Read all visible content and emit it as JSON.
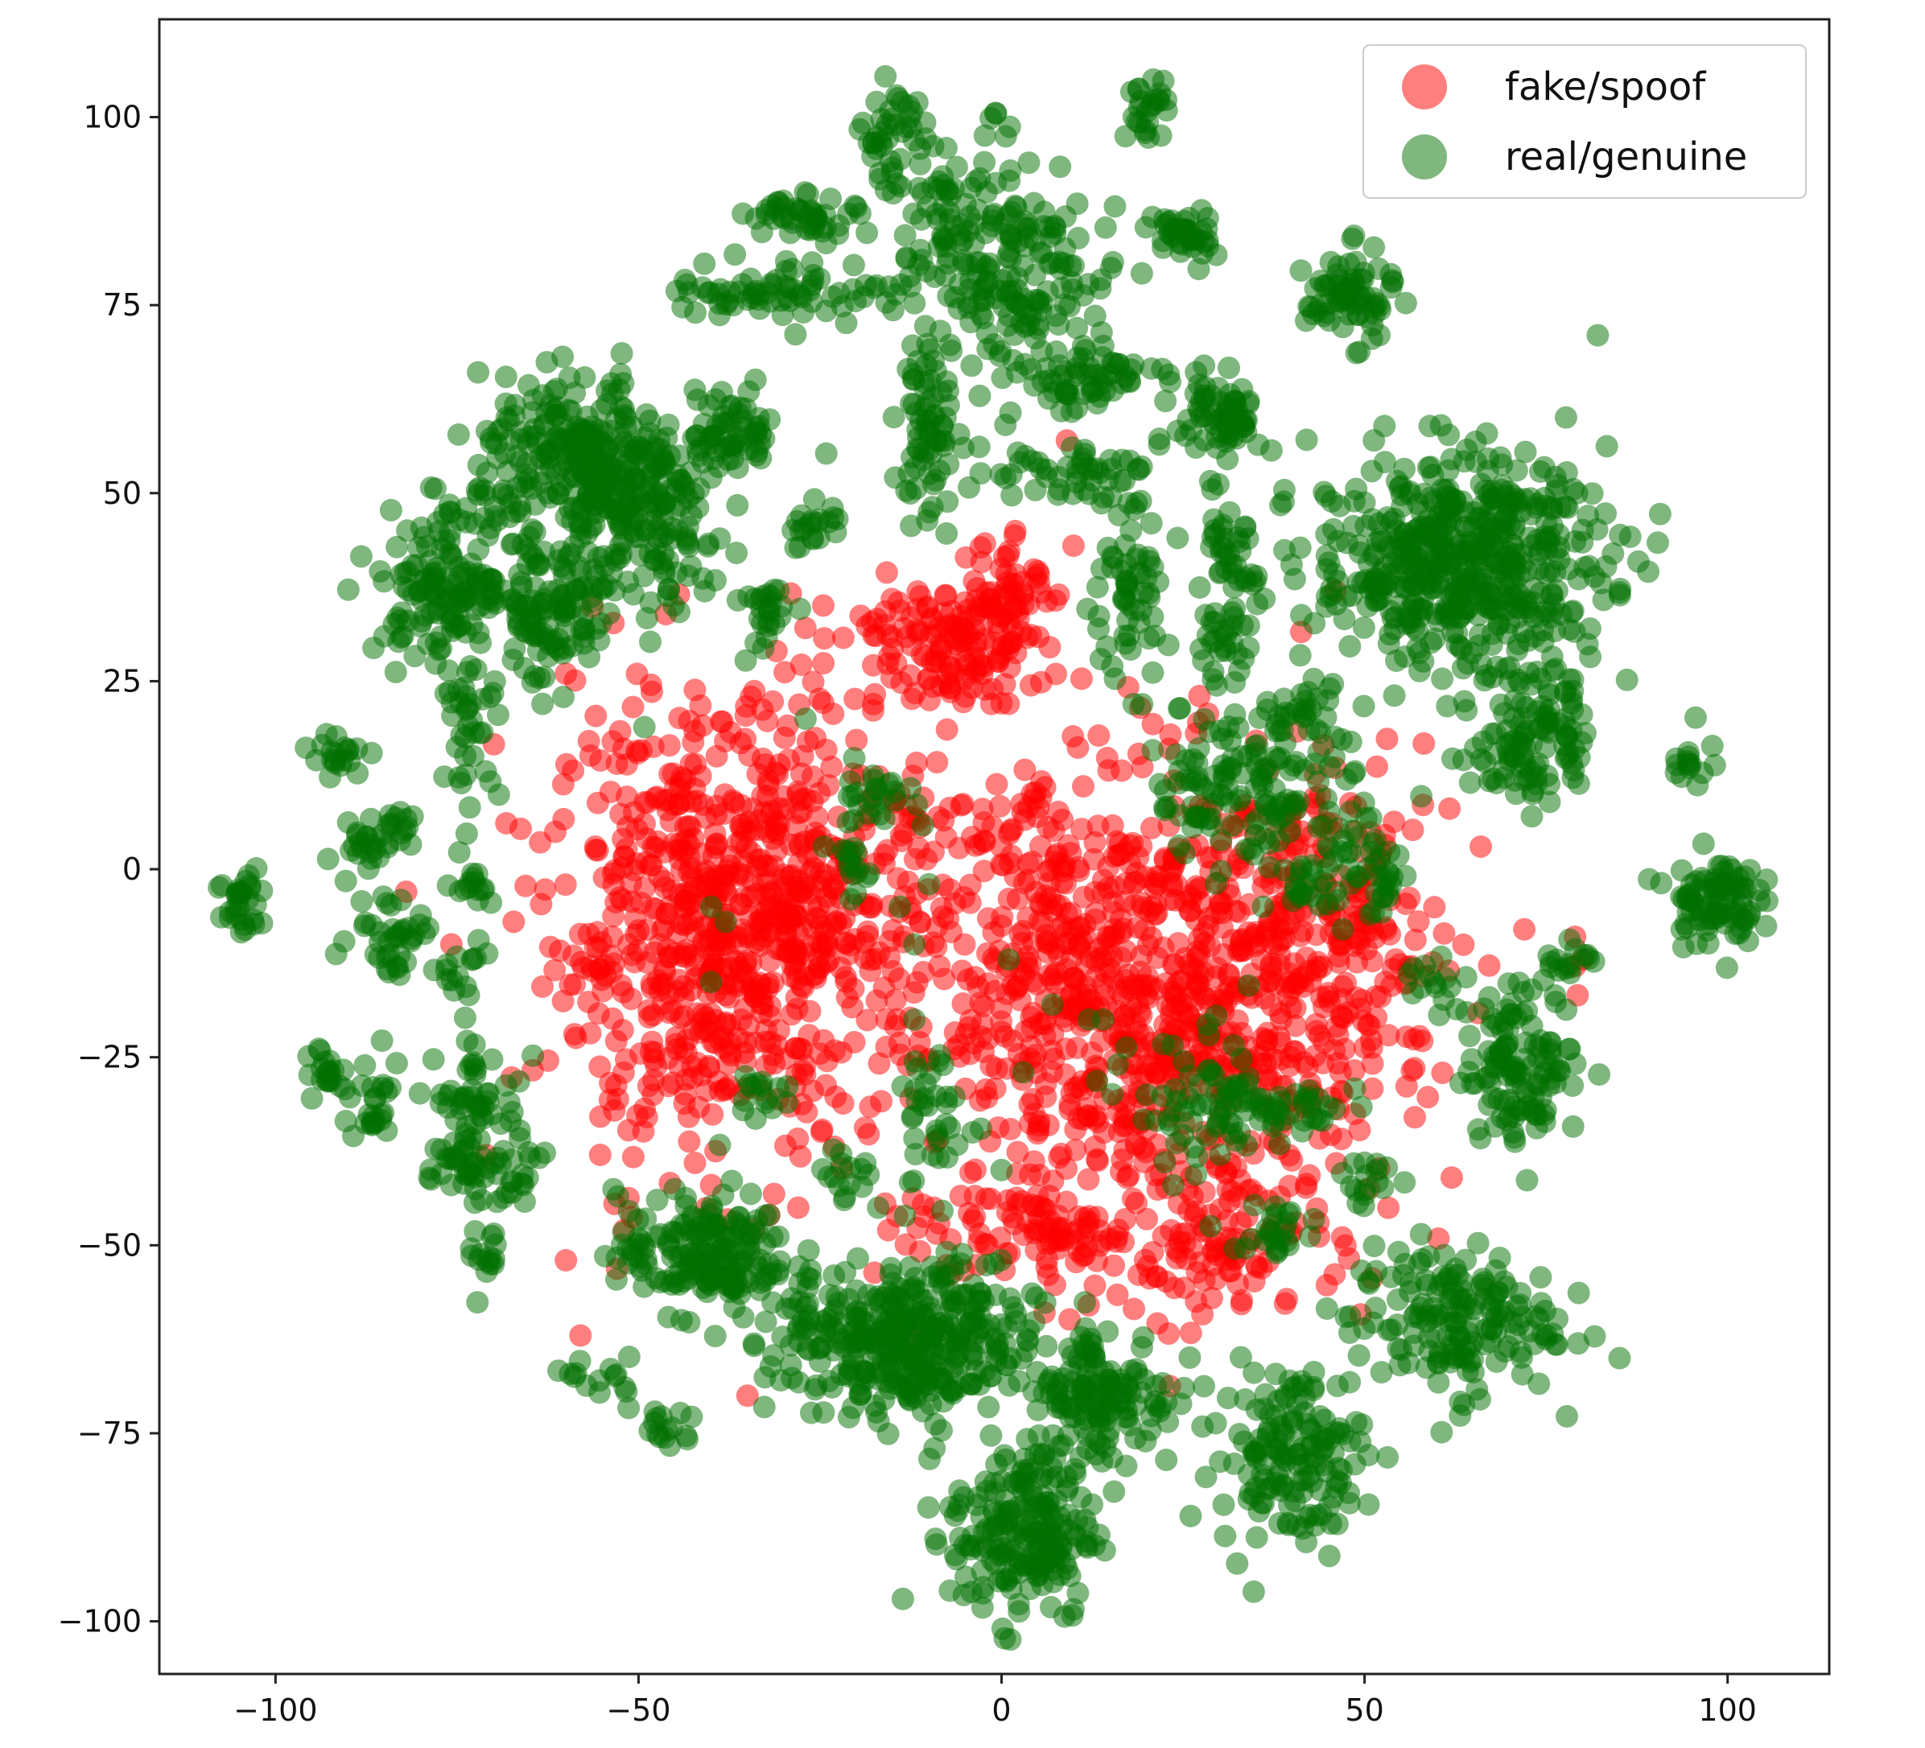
{
  "chart_data": {
    "type": "scatter",
    "title": "",
    "xlabel": "",
    "ylabel": "",
    "xlim": [
      -116,
      114
    ],
    "ylim": [
      -107,
      113
    ],
    "xticks": [
      -100,
      -50,
      0,
      50,
      100
    ],
    "xtick_labels": [
      "−100",
      "−50",
      "0",
      "50",
      "100"
    ],
    "yticks": [
      100,
      75,
      50,
      25,
      0,
      -25,
      -50,
      -75,
      -100
    ],
    "ytick_labels": [
      "100",
      "75",
      "50",
      "25",
      "0",
      "−25",
      "−50",
      "−75",
      "−100"
    ],
    "grid": false,
    "legend_position": "top-right",
    "series": [
      {
        "name": "fake/spoof",
        "color": "#ff0000",
        "alpha": 0.5,
        "clusters": [
          {
            "cx": -40,
            "cy": -8,
            "sx": 11,
            "sy": 15,
            "n": 650
          },
          {
            "cx": -25,
            "cy": -5,
            "sx": 8,
            "sy": 10,
            "n": 160
          },
          {
            "cx": 22,
            "cy": -18,
            "sx": 16,
            "sy": 15,
            "n": 800
          },
          {
            "cx": 45,
            "cy": -10,
            "sx": 9,
            "sy": 11,
            "n": 180
          },
          {
            "cx": -8,
            "cy": 30,
            "sx": 7,
            "sy": 4,
            "n": 140
          },
          {
            "cx": 0,
            "cy": 37,
            "sx": 3,
            "sy": 5,
            "n": 60
          },
          {
            "cx": 0,
            "cy": -5,
            "sx": 8,
            "sy": 12,
            "n": 110
          },
          {
            "cx": 10,
            "cy": -48,
            "sx": 12,
            "sy": 4,
            "n": 110
          },
          {
            "cx": 30,
            "cy": -52,
            "sx": 10,
            "sy": 4,
            "n": 70
          }
        ],
        "points": [
          [
            -60,
            -52
          ],
          [
            -58,
            -62
          ],
          [
            -40,
            -42
          ],
          [
            -32,
            -46
          ],
          [
            -28,
            -45
          ],
          [
            -71,
            -38
          ],
          [
            -52,
            -48
          ],
          [
            62,
            -41
          ],
          [
            72,
            -8
          ],
          [
            80,
            -12
          ],
          [
            66,
            3
          ],
          [
            -82,
            -3
          ],
          [
            -60,
            26
          ],
          [
            9,
            57
          ],
          [
            46,
            37
          ],
          [
            -31,
            29
          ],
          [
            79,
            -9
          ],
          [
            -12,
            -62
          ],
          [
            12,
            -58
          ],
          [
            -35,
            -70
          ]
        ]
      },
      {
        "name": "real/genuine",
        "color": "#007000",
        "alpha": 0.5,
        "clusters": [
          {
            "cx": 63,
            "cy": 41,
            "sx": 10,
            "sy": 7,
            "n": 520
          },
          {
            "cx": 73,
            "cy": 18,
            "sx": 4,
            "sy": 5,
            "n": 110
          },
          {
            "cx": -13,
            "cy": -63,
            "sx": 9,
            "sy": 5,
            "n": 380
          },
          {
            "cx": 3,
            "cy": -88,
            "sx": 5,
            "sy": 6,
            "n": 200
          },
          {
            "cx": 14,
            "cy": -70,
            "sx": 5,
            "sy": 5,
            "n": 140
          },
          {
            "cx": 40,
            "cy": -78,
            "sx": 5,
            "sy": 6,
            "n": 150
          },
          {
            "cx": 62,
            "cy": -60,
            "sx": 7,
            "sy": 5,
            "n": 170
          },
          {
            "cx": -41,
            "cy": -51,
            "sx": 6,
            "sy": 4,
            "n": 180
          },
          {
            "cx": 72,
            "cy": -26,
            "sx": 4,
            "sy": 5,
            "n": 120
          },
          {
            "cx": 98,
            "cy": -4,
            "sx": 3,
            "sy": 3,
            "n": 90
          },
          {
            "cx": -58,
            "cy": 55,
            "sx": 7,
            "sy": 5,
            "n": 230
          },
          {
            "cx": -50,
            "cy": 46,
            "sx": 6,
            "sy": 6,
            "n": 160
          },
          {
            "cx": -76,
            "cy": 38,
            "sx": 5,
            "sy": 5,
            "n": 150
          },
          {
            "cx": -62,
            "cy": 34,
            "sx": 5,
            "sy": 5,
            "n": 110
          },
          {
            "cx": -37,
            "cy": 58,
            "sx": 3,
            "sy": 3,
            "n": 60
          },
          {
            "cx": 30,
            "cy": 60,
            "sx": 3,
            "sy": 3,
            "n": 70
          },
          {
            "cx": 48,
            "cy": 76,
            "sx": 3,
            "sy": 3,
            "n": 70
          },
          {
            "cx": 25,
            "cy": 84,
            "sx": 2,
            "sy": 2,
            "n": 40
          },
          {
            "cx": 20,
            "cy": 101,
            "sx": 1.5,
            "sy": 2,
            "n": 25
          },
          {
            "cx": -15,
            "cy": 98,
            "sx": 2,
            "sy": 3,
            "n": 35
          },
          {
            "cx": -5,
            "cy": 85,
            "sx": 6,
            "sy": 7,
            "n": 120
          },
          {
            "cx": 5,
            "cy": 77,
            "sx": 6,
            "sy": 6,
            "n": 110
          },
          {
            "cx": -27,
            "cy": 87,
            "sx": 4,
            "sy": 1.5,
            "n": 45
          },
          {
            "cx": -30,
            "cy": 77,
            "sx": 8,
            "sy": 2,
            "n": 70
          },
          {
            "cx": -10,
            "cy": 58,
            "sx": 2,
            "sy": 7,
            "n": 70
          },
          {
            "cx": 8,
            "cy": 53,
            "sx": 6,
            "sy": 2,
            "n": 50
          },
          {
            "cx": 12,
            "cy": 65,
            "sx": 5,
            "sy": 2,
            "n": 50
          },
          {
            "cx": 17,
            "cy": 36,
            "sx": 3,
            "sy": 6,
            "n": 60
          },
          {
            "cx": 31,
            "cy": 40,
            "sx": 2,
            "sy": 4,
            "n": 40
          },
          {
            "cx": 30,
            "cy": 30,
            "sx": 2,
            "sy": 2,
            "n": 25
          },
          {
            "cx": -26,
            "cy": 45,
            "sx": 2,
            "sy": 2,
            "n": 20
          },
          {
            "cx": -32,
            "cy": 35,
            "sx": 2,
            "sy": 3,
            "n": 25
          },
          {
            "cx": -73,
            "cy": 18,
            "sx": 2,
            "sy": 4,
            "n": 35
          },
          {
            "cx": -91,
            "cy": 15,
            "sx": 2,
            "sy": 1.5,
            "n": 20
          },
          {
            "cx": -88,
            "cy": 4,
            "sx": 2,
            "sy": 1.5,
            "n": 20
          },
          {
            "cx": -83,
            "cy": 5,
            "sx": 1.5,
            "sy": 2,
            "n": 15
          },
          {
            "cx": -104,
            "cy": -5,
            "sx": 2,
            "sy": 3,
            "n": 30
          },
          {
            "cx": -84,
            "cy": -8,
            "sx": 3,
            "sy": 3,
            "n": 40
          },
          {
            "cx": -73,
            "cy": -2,
            "sx": 1.5,
            "sy": 1.5,
            "n": 15
          },
          {
            "cx": -74,
            "cy": -13,
            "sx": 1.5,
            "sy": 2,
            "n": 15
          },
          {
            "cx": -93,
            "cy": -27,
            "sx": 1.5,
            "sy": 2,
            "n": 20
          },
          {
            "cx": -86,
            "cy": -31,
            "sx": 2,
            "sy": 3,
            "n": 25
          },
          {
            "cx": -72,
            "cy": -30,
            "sx": 3,
            "sy": 3,
            "n": 45
          },
          {
            "cx": -74,
            "cy": -40,
            "sx": 3,
            "sy": 3,
            "n": 40
          },
          {
            "cx": -66,
            "cy": -40,
            "sx": 2,
            "sy": 2,
            "n": 20
          },
          {
            "cx": -71,
            "cy": -52,
            "sx": 1.5,
            "sy": 2,
            "n": 15
          },
          {
            "cx": -55,
            "cy": -68,
            "sx": 2,
            "sy": 1.5,
            "n": 15
          },
          {
            "cx": -46,
            "cy": -74,
            "sx": 2,
            "sy": 1.5,
            "n": 15
          },
          {
            "cx": 30,
            "cy": 12,
            "sx": 5,
            "sy": 5,
            "n": 80
          },
          {
            "cx": 40,
            "cy": 8,
            "sx": 5,
            "sy": 5,
            "n": 60
          },
          {
            "cx": 42,
            "cy": 20,
            "sx": 3,
            "sy": 3,
            "n": 30
          },
          {
            "cx": 28,
            "cy": -32,
            "sx": 5,
            "sy": 5,
            "n": 60
          },
          {
            "cx": 39,
            "cy": -32,
            "sx": 5,
            "sy": 2,
            "n": 40
          },
          {
            "cx": -10,
            "cy": -35,
            "sx": 2,
            "sy": 6,
            "n": 35
          },
          {
            "cx": -18,
            "cy": 10,
            "sx": 3,
            "sy": 2,
            "n": 25
          },
          {
            "cx": -20,
            "cy": 0,
            "sx": 2,
            "sy": 2,
            "n": 15
          },
          {
            "cx": 50,
            "cy": 2,
            "sx": 3,
            "sy": 2,
            "n": 20
          },
          {
            "cx": 53,
            "cy": -3,
            "sx": 2,
            "sy": 2,
            "n": 15
          },
          {
            "cx": 42,
            "cy": -3,
            "sx": 2,
            "sy": 2,
            "n": 15
          },
          {
            "cx": 60,
            "cy": -15,
            "sx": 2,
            "sy": 2,
            "n": 15
          },
          {
            "cx": 51,
            "cy": -41,
            "sx": 2,
            "sy": 2,
            "n": 15
          },
          {
            "cx": 38,
            "cy": -48,
            "sx": 3,
            "sy": 2,
            "n": 25
          },
          {
            "cx": 78,
            "cy": -12,
            "sx": 2,
            "sy": 1.5,
            "n": 15
          },
          {
            "cx": 95,
            "cy": 15,
            "sx": 1.5,
            "sy": 2,
            "n": 15
          },
          {
            "cx": -32,
            "cy": -30,
            "sx": 2,
            "sy": 2,
            "n": 15
          },
          {
            "cx": -22,
            "cy": -40,
            "sx": 2,
            "sy": 2,
            "n": 15
          }
        ],
        "points": [
          [
            -40,
            -5
          ],
          [
            -38,
            -7
          ],
          [
            -40,
            -15
          ],
          [
            1,
            -12
          ],
          [
            7,
            -18
          ],
          [
            12,
            -20
          ],
          [
            14,
            -20
          ],
          [
            3,
            -27
          ],
          [
            16,
            -26
          ],
          [
            -4,
            -35
          ],
          [
            20,
            -30
          ],
          [
            36,
            -5
          ],
          [
            46,
            -3
          ],
          [
            47,
            -8
          ],
          [
            70,
            25
          ],
          [
            -14,
            -5
          ],
          [
            -10,
            -2
          ],
          [
            -12,
            -10
          ],
          [
            -12,
            -20
          ],
          [
            -27,
            20
          ],
          [
            0,
            -40
          ],
          [
            -17,
            -45
          ],
          [
            2,
            88
          ],
          [
            -20,
            88
          ]
        ]
      }
    ]
  }
}
